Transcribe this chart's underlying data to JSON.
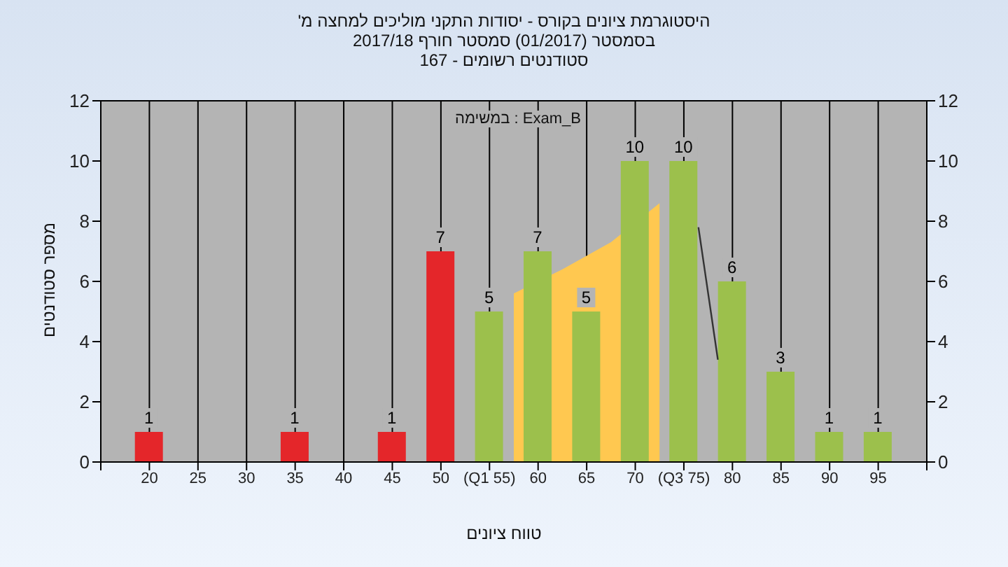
{
  "chart_data": {
    "type": "bar",
    "title": "היסטוגרמת ציונים בקורס - יסודות התקני מוליכים למחצה מ'",
    "subtitle": "בסמסטר (01/2017) סמסטר חורף 2017/18\nסטודנטים רשומים - 167",
    "xlabel": "טווח ציונים",
    "ylabel": "מספר סטודנטים",
    "annotations": [
      "במשימה : Exam_B"
    ],
    "x": [
      20,
      25,
      30,
      35,
      40,
      45,
      50,
      55,
      60,
      65,
      70,
      75,
      80,
      85,
      90,
      95
    ],
    "series": [
      {
        "type": "area",
        "color": "#ffc850",
        "x": [
          57.5,
          62.5,
          67.5,
          72.5
        ],
        "values": [
          5.6,
          6.4,
          7.3,
          8.6
        ]
      },
      {
        "type": "line",
        "color": "#333333",
        "x": [
          76.5,
          78.5
        ],
        "values": [
          7.8,
          3.4
        ]
      },
      {
        "value_labels": [
          "1",
          null,
          null,
          "1",
          null,
          "1",
          "7",
          "5",
          "7",
          "5",
          "10",
          "10",
          "6",
          "3",
          "1",
          "1"
        ],
        "colors": [
          "#e4262a",
          null,
          null,
          "#e4262a",
          null,
          "#e4262a",
          "#e4262a",
          "#9cc04c",
          "#9cc04c",
          "#9cc04c",
          "#9cc04c",
          "#9cc04c",
          "#9cc04c",
          "#9cc04c",
          "#9cc04c",
          "#9cc04c"
        ],
        "values": [
          1,
          null,
          null,
          1,
          null,
          1,
          7,
          5,
          7,
          5,
          10,
          10,
          6,
          3,
          1,
          1
        ]
      }
    ],
    "xlim": [
      15,
      100
    ],
    "xticks": [
      {
        "value": 15,
        "label": null
      },
      20,
      25,
      30,
      35,
      40,
      45,
      50,
      {
        "value": 55,
        "label": "(Q1 55)"
      },
      60,
      65,
      70,
      {
        "value": 75,
        "label": "(Q3 75)"
      },
      80,
      85,
      90,
      95,
      {
        "value": 100,
        "label": null
      }
    ],
    "ylim": [
      0,
      12
    ],
    "yticks": [
      0,
      2,
      4,
      6,
      8,
      10,
      12
    ],
    "y2lim": [
      0,
      12
    ],
    "y2ticks": [
      0,
      2,
      4,
      6,
      8,
      10,
      12
    ],
    "grid": true,
    "legend": false
  }
}
